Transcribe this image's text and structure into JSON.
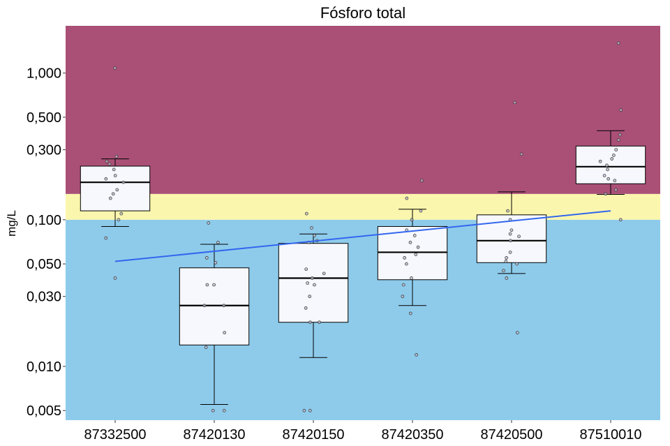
{
  "chart_data": {
    "type": "boxplot",
    "title": "Fósforo total",
    "xlabel": "",
    "ylabel": "mg/L",
    "yscale": "log",
    "ylim": [
      0.0043,
      2.1
    ],
    "yticks": [
      {
        "value": 0.005,
        "label": "0,005"
      },
      {
        "value": 0.01,
        "label": "0,010"
      },
      {
        "value": 0.03,
        "label": "0,030"
      },
      {
        "value": 0.05,
        "label": "0,050"
      },
      {
        "value": 0.1,
        "label": "0,100"
      },
      {
        "value": 0.3,
        "label": "0,300"
      },
      {
        "value": 0.5,
        "label": "0,500"
      },
      {
        "value": 1.0,
        "label": "1,000"
      }
    ],
    "categories": [
      "87332500",
      "87420130",
      "87420150",
      "87420350",
      "87420500",
      "87510010"
    ],
    "bands": [
      {
        "from": 0.0043,
        "to": 0.1,
        "color": "#8ecbeb"
      },
      {
        "from": 0.1,
        "to": 0.15,
        "color": "#fbf6ad"
      },
      {
        "from": 0.15,
        "to": 2.1,
        "color": "#aa5077"
      }
    ],
    "boxes": [
      {
        "category": "87332500",
        "whisker_low": 0.09,
        "q1": 0.115,
        "median": 0.18,
        "q3": 0.232,
        "whisker_high": 0.26
      },
      {
        "category": "87420130",
        "whisker_low": 0.0055,
        "q1": 0.014,
        "median": 0.026,
        "q3": 0.047,
        "whisker_high": 0.068
      },
      {
        "category": "87420150",
        "whisker_low": 0.0115,
        "q1": 0.02,
        "median": 0.04,
        "q3": 0.069,
        "whisker_high": 0.08
      },
      {
        "category": "87420350",
        "whisker_low": 0.026,
        "q1": 0.039,
        "median": 0.06,
        "q3": 0.09,
        "whisker_high": 0.118
      },
      {
        "category": "87420500",
        "whisker_low": 0.043,
        "q1": 0.051,
        "median": 0.072,
        "q3": 0.108,
        "whisker_high": 0.155
      },
      {
        "category": "87510010",
        "whisker_low": 0.149,
        "q1": 0.176,
        "median": 0.23,
        "q3": 0.318,
        "whisker_high": 0.405
      }
    ],
    "points": [
      {
        "category": "87332500",
        "values": [
          1.08,
          0.27,
          0.25,
          0.24,
          0.22,
          0.2,
          0.19,
          0.18,
          0.16,
          0.15,
          0.14,
          0.11,
          0.1,
          0.075,
          0.04
        ]
      },
      {
        "category": "87420130",
        "values": [
          0.095,
          0.07,
          0.055,
          0.051,
          0.036,
          0.036,
          0.026,
          0.026,
          0.017,
          0.0135,
          0.005,
          0.005
        ]
      },
      {
        "category": "87420150",
        "values": [
          0.11,
          0.088,
          0.078,
          0.072,
          0.07,
          0.046,
          0.043,
          0.04,
          0.037,
          0.036,
          0.03,
          0.025,
          0.02,
          0.02,
          0.005,
          0.005
        ]
      },
      {
        "category": "87420350",
        "values": [
          0.185,
          0.14,
          0.115,
          0.1,
          0.085,
          0.078,
          0.07,
          0.065,
          0.058,
          0.055,
          0.05,
          0.04,
          0.036,
          0.03,
          0.023,
          0.012
        ]
      },
      {
        "category": "87420500",
        "values": [
          0.63,
          0.28,
          0.115,
          0.1,
          0.085,
          0.08,
          0.077,
          0.072,
          0.06,
          0.055,
          0.052,
          0.05,
          0.045,
          0.04,
          0.017
        ]
      },
      {
        "category": "87510010",
        "values": [
          1.6,
          0.56,
          0.38,
          0.35,
          0.3,
          0.275,
          0.26,
          0.25,
          0.235,
          0.22,
          0.2,
          0.19,
          0.185,
          0.16,
          0.15,
          0.1
        ]
      }
    ],
    "trend_line": {
      "color": "#3366ee",
      "start": {
        "category": "87332500",
        "value": 0.052
      },
      "end": {
        "category": "87510010",
        "value": 0.115
      }
    },
    "grid": false,
    "legend": "none"
  }
}
